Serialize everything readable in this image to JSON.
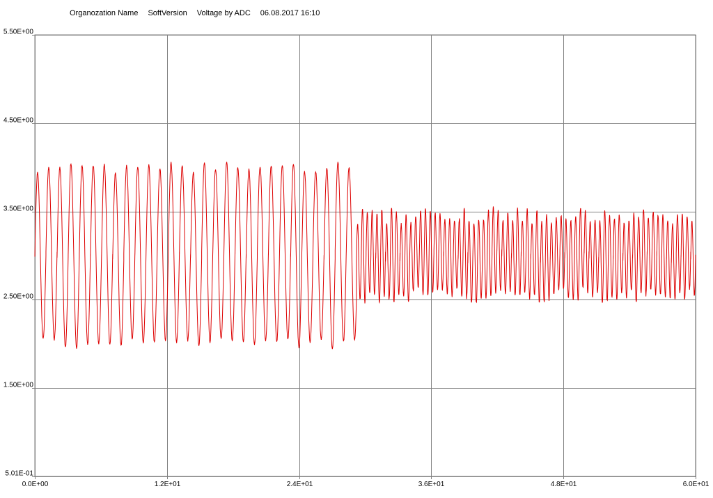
{
  "header": {
    "organization": "Organozation Name",
    "soft_version": "SoftVersion",
    "measurement": "Voltage by ADC",
    "timestamp": "06.08.2017 16:10"
  },
  "chart_data": {
    "type": "line",
    "title": "",
    "xlabel": "",
    "ylabel": "",
    "xlim": [
      0,
      60
    ],
    "ylim": [
      0.501,
      5.5
    ],
    "grid": true,
    "x_ticks": [
      0,
      12,
      24,
      36,
      48,
      60
    ],
    "x_tick_labels": [
      "0.0E+00",
      "1.2E+01",
      "2.4E+01",
      "3.6E+01",
      "4.8E+01",
      "6.0E+01"
    ],
    "y_ticks": [
      0.501,
      1.5,
      2.5,
      3.5,
      4.5,
      5.5
    ],
    "y_tick_labels": [
      "5.01E-01",
      "1.50E+00",
      "2.50E+00",
      "3.50E+00",
      "4.50E+00",
      "5.50E+00"
    ],
    "series": [
      {
        "color": "#dd0000",
        "segments": [
          {
            "x_start": 0.0,
            "x_end": 29.2,
            "period": 1.01,
            "min": 2.0,
            "max": 4.0,
            "min_spread": 0.06,
            "max_spread": 0.06
          },
          {
            "x_start": 29.2,
            "x_end": 60.0,
            "period": 0.44,
            "min": 2.55,
            "max": 3.45,
            "min_spread": 0.09,
            "max_spread": 0.1
          }
        ],
        "extremes": {
          "max": 4.05,
          "min": 1.95
        }
      }
    ],
    "colors": {
      "line": "#dd0000",
      "grid": "#808080",
      "plot_background": "#ffffff"
    }
  }
}
